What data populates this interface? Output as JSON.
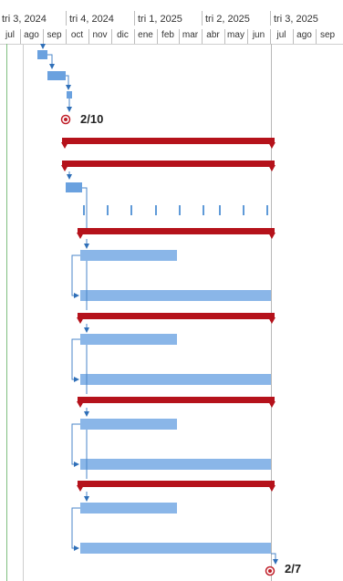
{
  "timescale": {
    "quarters": [
      {
        "label": "tri 3, 2024"
      },
      {
        "label": "tri 4, 2024"
      },
      {
        "label": "tri 1, 2025"
      },
      {
        "label": "tri 2, 2025"
      },
      {
        "label": "tri 3, 2025"
      }
    ],
    "months": [
      "jul",
      "ago",
      "sep",
      "oct",
      "nov",
      "dic",
      "ene",
      "feb",
      "mar",
      "abr",
      "may",
      "jun",
      "jul",
      "ago",
      "sep"
    ]
  },
  "milestones": {
    "start_label": "2/10",
    "end_label": "2/7"
  },
  "colors": {
    "summary_bar": "#b5121b",
    "task_bar": "#8ab6e8",
    "task_bar_dark": "#6aa1df",
    "link_line": "#4a86c8",
    "today_line": "#7fbf7f",
    "status_line": "#b8b8b8",
    "milestone": "#c0202a"
  },
  "icons": {
    "milestone": "milestone-icon",
    "summary_cap": "summary-cap-icon"
  }
}
